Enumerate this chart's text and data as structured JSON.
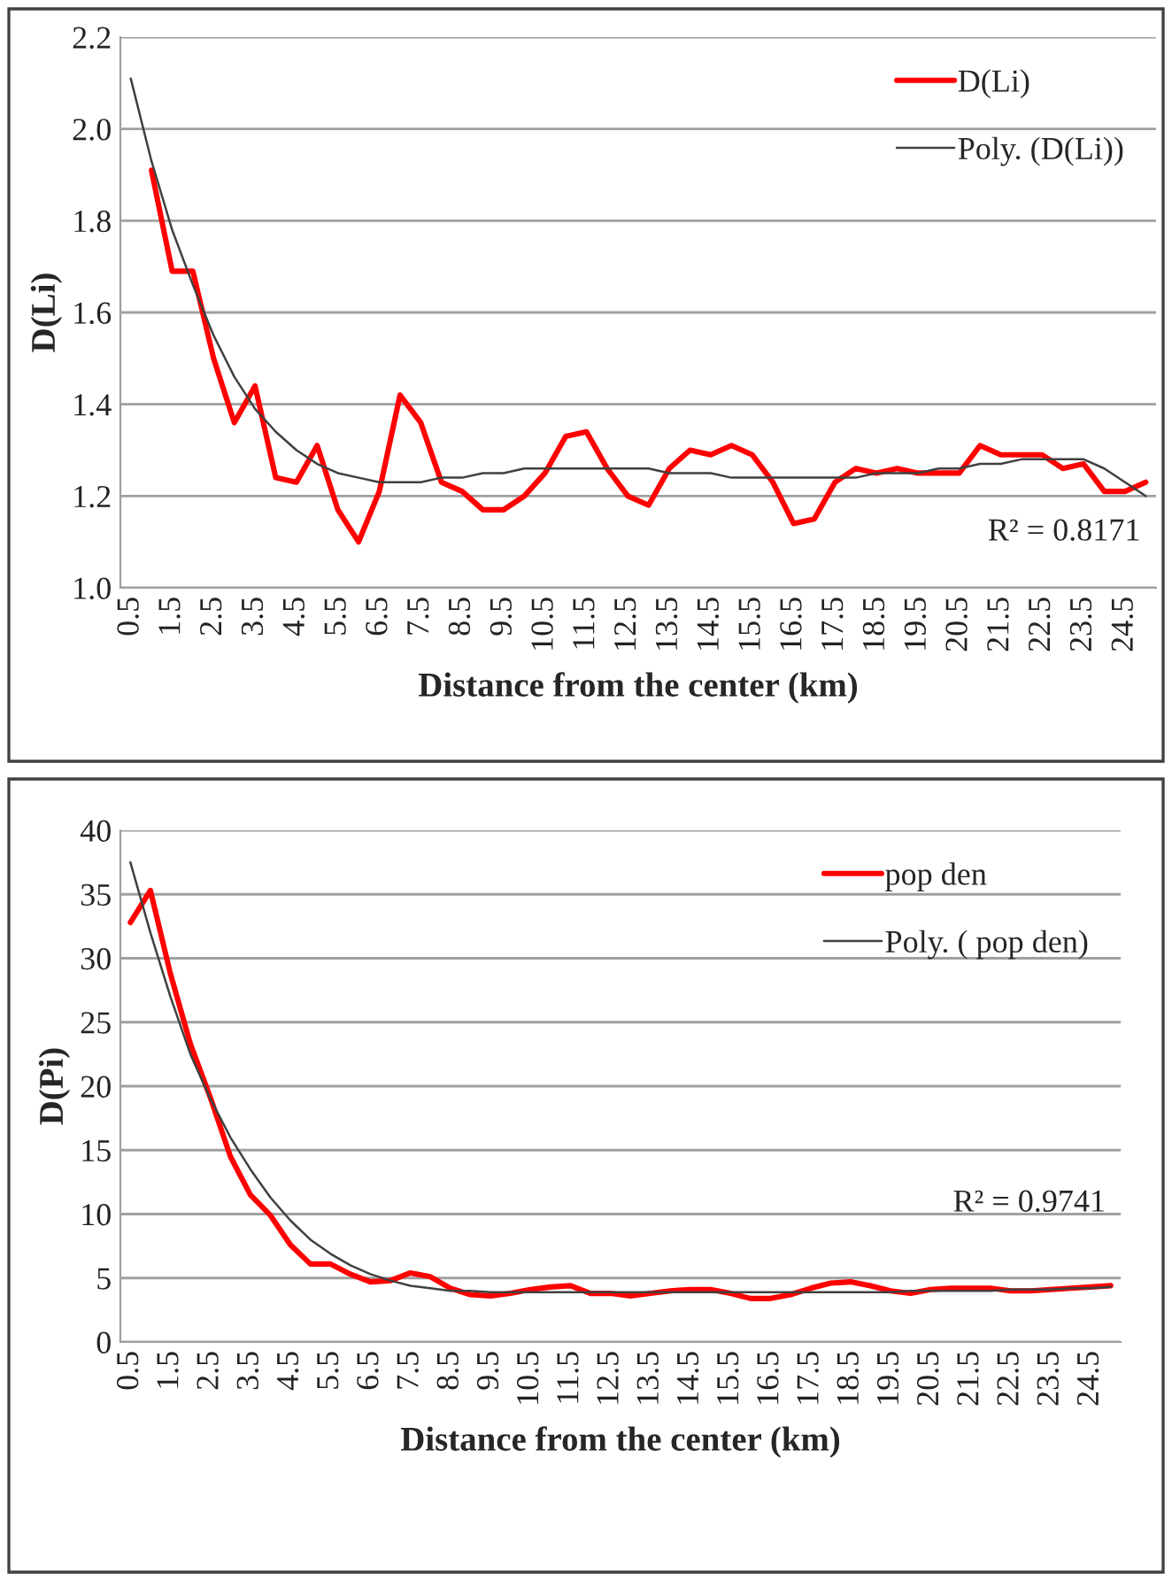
{
  "chart_data": [
    {
      "type": "line",
      "xlabel": "Distance from the center (km)",
      "ylabel": "D(Li)",
      "categories": [
        "0.5",
        null,
        "1.5",
        null,
        "2.5",
        null,
        "3.5",
        null,
        "4.5",
        null,
        "5.5",
        null,
        "6.5",
        null,
        "7.5",
        null,
        "8.5",
        null,
        "9.5",
        null,
        "10.5",
        null,
        "11.5",
        null,
        "12.5",
        null,
        "13.5",
        null,
        "14.5",
        null,
        "15.5",
        null,
        "16.5",
        null,
        "17.5",
        null,
        "18.5",
        null,
        "19.5",
        null,
        "20.5",
        null,
        "21.5",
        null,
        "22.5",
        null,
        "23.5",
        null,
        "24.5",
        null
      ],
      "series": [
        {
          "name": "D(Li)",
          "color": "#ff0000",
          "values": [
            null,
            1.91,
            1.69,
            1.69,
            1.5,
            1.36,
            1.44,
            1.24,
            1.23,
            1.31,
            1.17,
            1.1,
            1.21,
            1.42,
            1.36,
            1.23,
            1.21,
            1.17,
            1.17,
            1.2,
            1.25,
            1.33,
            1.34,
            1.26,
            1.2,
            1.18,
            1.26,
            1.3,
            1.29,
            1.31,
            1.29,
            1.23,
            1.14,
            1.15,
            1.23,
            1.26,
            1.25,
            1.26,
            1.25,
            1.25,
            1.25,
            1.31,
            1.29,
            1.29,
            1.29,
            1.26,
            1.27,
            1.21,
            1.21,
            1.23
          ]
        },
        {
          "name": "Poly. (D(Li))",
          "color": "#404040",
          "values": [
            2.11,
            1.93,
            1.78,
            1.66,
            1.55,
            1.46,
            1.39,
            1.34,
            1.3,
            1.27,
            1.25,
            1.24,
            1.23,
            1.23,
            1.23,
            1.24,
            1.24,
            1.25,
            1.25,
            1.26,
            1.26,
            1.26,
            1.26,
            1.26,
            1.26,
            1.26,
            1.25,
            1.25,
            1.25,
            1.24,
            1.24,
            1.24,
            1.24,
            1.24,
            1.24,
            1.24,
            1.25,
            1.25,
            1.25,
            1.26,
            1.26,
            1.27,
            1.27,
            1.28,
            1.28,
            1.28,
            1.28,
            1.26,
            1.23,
            1.2
          ]
        }
      ],
      "ylim": [
        1.0,
        2.2
      ],
      "yticks": [
        {
          "value": 1,
          "label": "1.0"
        },
        1.2,
        1.4,
        1.6,
        1.8,
        {
          "value": 2,
          "label": "2.0"
        },
        2.2
      ],
      "grid": "y",
      "legend": "top right",
      "annotations": [
        "R² = 0.8171"
      ]
    },
    {
      "type": "line",
      "xlabel": "Distance from the center (km)",
      "ylabel": "D(Pi)",
      "categories": [
        "0.5",
        null,
        "1.5",
        null,
        "2.5",
        null,
        "3.5",
        null,
        "4.5",
        null,
        "5.5",
        null,
        "6.5",
        null,
        "7.5",
        null,
        "8.5",
        null,
        "9.5",
        null,
        "10.5",
        null,
        "11.5",
        null,
        "12.5",
        null,
        "13.5",
        null,
        "14.5",
        null,
        "15.5",
        null,
        "16.5",
        null,
        "17.5",
        null,
        "18.5",
        null,
        "19.5",
        null,
        "20.5",
        null,
        "21.5",
        null,
        "22.5",
        null,
        "23.5",
        null,
        "24.5",
        null
      ],
      "series": [
        {
          "name": "pop den",
          "color": "#ff0000",
          "values": [
            32.8,
            35.3,
            28.8,
            23.3,
            19.1,
            14.5,
            11.5,
            9.9,
            7.6,
            6.1,
            6.1,
            5.3,
            4.7,
            4.8,
            5.4,
            5.1,
            4.2,
            3.7,
            3.6,
            3.8,
            4.1,
            4.3,
            4.4,
            3.8,
            3.8,
            3.6,
            3.8,
            4.0,
            4.1,
            4.1,
            3.8,
            3.4,
            3.4,
            3.7,
            4.2,
            4.6,
            4.7,
            4.4,
            4.0,
            3.8,
            4.1,
            4.2,
            4.2,
            4.2,
            4.0,
            4.0,
            4.1,
            4.2,
            4.3,
            4.4
          ]
        },
        {
          "name": "Poly. ( pop den)",
          "color": "#404040",
          "values": [
            37.5,
            32.0,
            27.0,
            22.5,
            19.0,
            16.0,
            13.5,
            11.3,
            9.5,
            8.0,
            6.9,
            6.0,
            5.3,
            4.8,
            4.4,
            4.2,
            4.0,
            4.0,
            3.9,
            3.9,
            3.9,
            3.9,
            3.9,
            3.9,
            3.9,
            3.9,
            3.9,
            3.9,
            3.9,
            3.9,
            3.9,
            3.9,
            3.9,
            3.9,
            3.9,
            3.9,
            3.9,
            3.9,
            3.9,
            4.0,
            4.0,
            4.0,
            4.0,
            4.0,
            4.1,
            4.1,
            4.1,
            4.2,
            4.2,
            4.3
          ]
        }
      ],
      "ylim": [
        0,
        40
      ],
      "yticks": [
        0,
        5,
        10,
        15,
        20,
        25,
        30,
        35,
        40
      ],
      "grid": "y",
      "legend": "top right",
      "annotations": [
        "R² = 0.9741"
      ]
    }
  ]
}
